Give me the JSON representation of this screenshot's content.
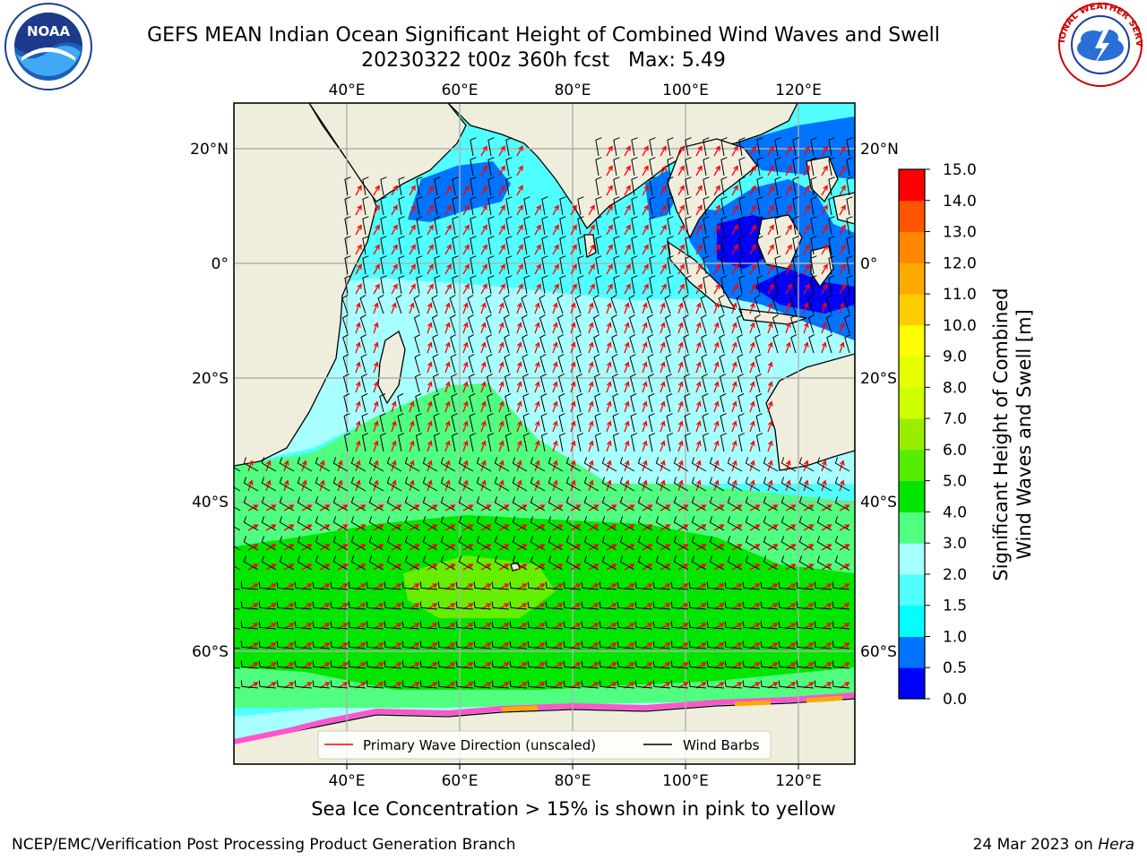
{
  "title": {
    "line1": "GEFS MEAN Indian Ocean Significant Height of Combined Wind Waves and Swell",
    "line2": "20230322 t00z 360h fcst   Max: 5.49"
  },
  "map": {
    "lon_labels": [
      "40°E",
      "60°E",
      "80°E",
      "100°E",
      "120°E"
    ],
    "lon_values": [
      40,
      60,
      80,
      100,
      120
    ],
    "lat_labels": [
      "20°N",
      "0°",
      "20°S",
      "40°S",
      "60°S"
    ],
    "lat_values": [
      20,
      0,
      -20,
      -40,
      -60
    ],
    "lon_range": [
      20,
      130
    ],
    "legend": {
      "wave_direction": "Primary Wave Direction (unscaled)",
      "wind_barbs": "Wind Barbs"
    }
  },
  "colorbar": {
    "label_line1": "Significant Height of Combined",
    "label_line2": "Wind Waves and Swell [m]",
    "ticks": [
      "0.0",
      "0.5",
      "1.0",
      "1.5",
      "2.0",
      "3.0",
      "4.0",
      "5.0",
      "6.0",
      "7.0",
      "8.0",
      "9.0",
      "10.0",
      "11.0",
      "12.0",
      "13.0",
      "14.0",
      "15.0"
    ],
    "colors": [
      "#0000ff",
      "#0073ff",
      "#00ffff",
      "#50ffff",
      "#a8ffff",
      "#50ff80",
      "#00e600",
      "#55ee00",
      "#99ee00",
      "#ccff00",
      "#e6ff00",
      "#ffff00",
      "#ffcc00",
      "#ffaa00",
      "#ff8800",
      "#ff5500",
      "#ff0000"
    ]
  },
  "footnote": "Sea Ice Concentration > 15% is shown in pink to yellow",
  "credit_left": "NCEP/EMC/Verification Post Processing Product Generation Branch",
  "credit_right_date": "24 Mar 2023 on",
  "credit_right_host": "Hera",
  "logos": {
    "left": "NOAA",
    "right": "NATIONAL WEATHER SERVICE"
  }
}
